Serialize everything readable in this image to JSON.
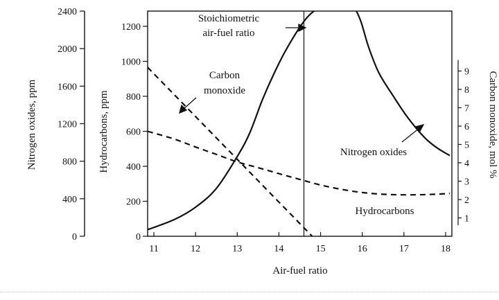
{
  "chart_data": {
    "type": "line",
    "xlabel": "Air-fuel ratio",
    "xlim": [
      10.85,
      18.15
    ],
    "x_ticks": [
      "11",
      "12",
      "13",
      "14",
      "15",
      "16",
      "17",
      "18"
    ],
    "axes": {
      "nox": {
        "label": "Nitrogen oxides, ppm",
        "ylim": [
          0,
          2400
        ],
        "ticks": [
          "0",
          "400",
          "800",
          "1200",
          "1600",
          "2000",
          "2400"
        ]
      },
      "hc": {
        "label": "Hydrocarbons, ppm",
        "ylim": [
          0,
          1200
        ],
        "ticks": [
          "0",
          "200",
          "400",
          "600",
          "800",
          "1000",
          "1200"
        ]
      },
      "co": {
        "label": "Carbon monoxide, mol %",
        "ylim": [
          0,
          12
        ],
        "ticks": [
          "1",
          "2",
          "3",
          "4",
          "5",
          "6",
          "7",
          "8",
          "9"
        ]
      }
    },
    "stoichiometric_ratio": 14.6,
    "series": [
      {
        "name": "Nitrogen oxides",
        "axis": "nox",
        "style": "solid",
        "x": [
          10.85,
          11.5,
          12.0,
          12.5,
          13.0,
          13.3,
          13.6,
          13.9,
          14.2,
          14.6,
          14.9,
          15.2,
          15.5,
          15.75,
          15.95,
          16.15,
          16.4,
          16.75,
          17.1,
          17.5,
          17.8,
          18.1
        ],
        "y": [
          70,
          180,
          310,
          510,
          850,
          1100,
          1450,
          1750,
          2010,
          2290,
          2420,
          2490,
          2510,
          2470,
          2310,
          2020,
          1740,
          1490,
          1260,
          1050,
          940,
          860
        ]
      },
      {
        "name": "Hydrocarbons",
        "axis": "hc",
        "style": "dashed",
        "x": [
          10.85,
          11.5,
          12.0,
          12.5,
          13.0,
          13.5,
          14.0,
          14.5,
          15.0,
          15.5,
          16.0,
          16.5,
          17.0,
          17.5,
          18.0,
          18.1
        ],
        "y": [
          600,
          555,
          510,
          468,
          425,
          392,
          358,
          325,
          293,
          268,
          250,
          240,
          237,
          238,
          243,
          245
        ]
      },
      {
        "name": "Carbon monoxide",
        "axis": "co",
        "style": "dashed",
        "x": [
          10.85,
          14.8
        ],
        "y": [
          9.2,
          0
        ]
      }
    ],
    "annotations": [
      {
        "lines": [
          "Stoichiometric",
          "air-fuel ratio"
        ]
      },
      {
        "lines": [
          "Carbon",
          "monoxide"
        ]
      },
      {
        "lines": [
          "Nitrogen oxides"
        ]
      },
      {
        "lines": [
          "Hydrocarbons"
        ]
      }
    ]
  }
}
